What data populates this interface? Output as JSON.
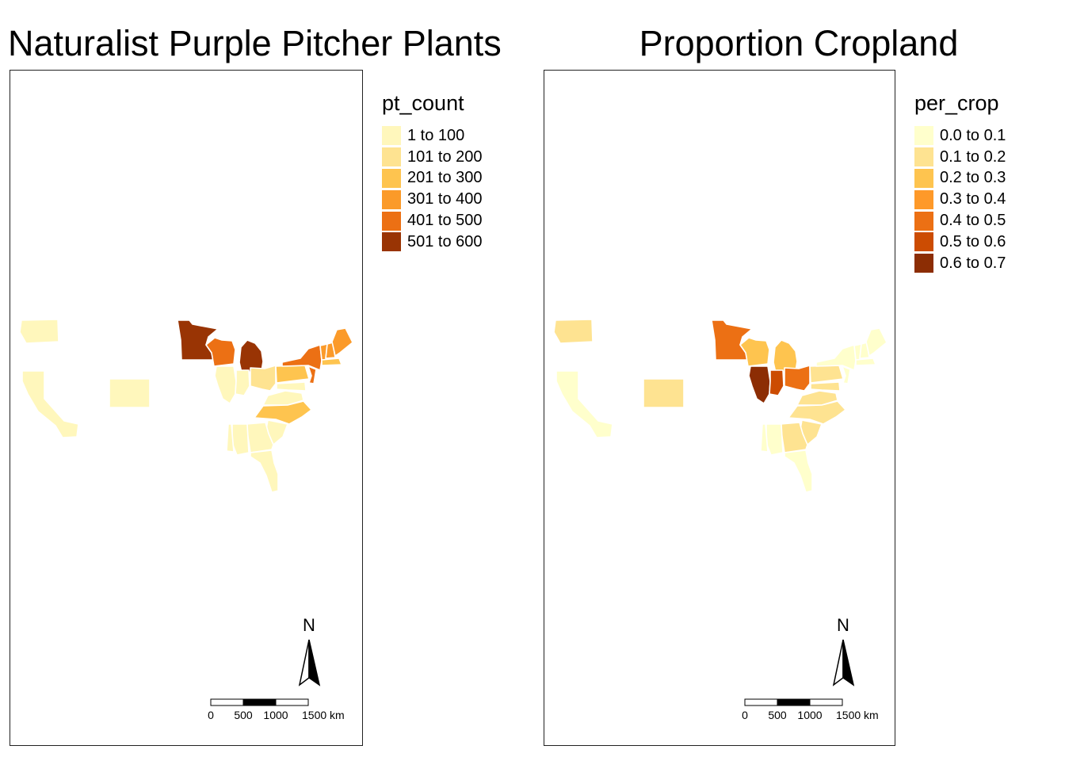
{
  "maps": [
    {
      "title": "Naturalist Purple Pitcher Plants",
      "legend_title": "pt_count",
      "legend": [
        {
          "label": "1 to 100",
          "color": "#FFF7BC"
        },
        {
          "label": "101 to 200",
          "color": "#FEE391"
        },
        {
          "label": "201 to 300",
          "color": "#FEC44F"
        },
        {
          "label": "301 to 400",
          "color": "#FB9A29"
        },
        {
          "label": "401 to 500",
          "color": "#EC7014"
        },
        {
          "label": "501 to 600",
          "color": "#993404"
        }
      ],
      "regions": [
        {
          "name": "Washington",
          "cls": 0
        },
        {
          "name": "California",
          "cls": 0
        },
        {
          "name": "Colorado",
          "cls": 0
        },
        {
          "name": "Minnesota",
          "cls": 5
        },
        {
          "name": "Wisconsin",
          "cls": 4
        },
        {
          "name": "Michigan",
          "cls": 5
        },
        {
          "name": "Illinois",
          "cls": 0
        },
        {
          "name": "Indiana",
          "cls": 0
        },
        {
          "name": "Ohio",
          "cls": 1
        },
        {
          "name": "Pennsylvania",
          "cls": 2
        },
        {
          "name": "New York",
          "cls": 4
        },
        {
          "name": "New Jersey",
          "cls": 4
        },
        {
          "name": "Vermont",
          "cls": 3
        },
        {
          "name": "New Hampshire",
          "cls": 3
        },
        {
          "name": "Maine",
          "cls": 3
        },
        {
          "name": "Massachusetts",
          "cls": 2
        },
        {
          "name": "Maryland",
          "cls": 0
        },
        {
          "name": "Virginia",
          "cls": 0
        },
        {
          "name": "North Carolina",
          "cls": 2
        },
        {
          "name": "South Carolina",
          "cls": 0
        },
        {
          "name": "Georgia",
          "cls": 0
        },
        {
          "name": "Alabama",
          "cls": 0
        },
        {
          "name": "Mississippi",
          "cls": 0
        },
        {
          "name": "Florida",
          "cls": 0
        }
      ]
    },
    {
      "title": "Proportion Cropland",
      "legend_title": "per_crop",
      "legend": [
        {
          "label": "0.0 to 0.1",
          "color": "#FFFFCC"
        },
        {
          "label": "0.1 to 0.2",
          "color": "#FEE391"
        },
        {
          "label": "0.2 to 0.3",
          "color": "#FEC44F"
        },
        {
          "label": "0.3 to 0.4",
          "color": "#FE9929"
        },
        {
          "label": "0.4 to 0.5",
          "color": "#EC7014"
        },
        {
          "label": "0.5 to 0.6",
          "color": "#CC4C02"
        },
        {
          "label": "0.6 to 0.7",
          "color": "#8C2D04"
        }
      ],
      "regions": [
        {
          "name": "Washington",
          "cls": 1
        },
        {
          "name": "California",
          "cls": 0
        },
        {
          "name": "Colorado",
          "cls": 1
        },
        {
          "name": "Minnesota",
          "cls": 4
        },
        {
          "name": "Wisconsin",
          "cls": 2
        },
        {
          "name": "Michigan",
          "cls": 2
        },
        {
          "name": "Illinois",
          "cls": 6
        },
        {
          "name": "Indiana",
          "cls": 5
        },
        {
          "name": "Ohio",
          "cls": 4
        },
        {
          "name": "Pennsylvania",
          "cls": 1
        },
        {
          "name": "New York",
          "cls": 0
        },
        {
          "name": "New Jersey",
          "cls": 0
        },
        {
          "name": "Vermont",
          "cls": 0
        },
        {
          "name": "New Hampshire",
          "cls": 0
        },
        {
          "name": "Maine",
          "cls": 0
        },
        {
          "name": "Massachusetts",
          "cls": 0
        },
        {
          "name": "Maryland",
          "cls": 1
        },
        {
          "name": "Virginia",
          "cls": 1
        },
        {
          "name": "North Carolina",
          "cls": 1
        },
        {
          "name": "South Carolina",
          "cls": 1
        },
        {
          "name": "Georgia",
          "cls": 1
        },
        {
          "name": "Alabama",
          "cls": 0
        },
        {
          "name": "Mississippi",
          "cls": 0
        },
        {
          "name": "Florida",
          "cls": 0
        }
      ]
    }
  ],
  "north_label": "N",
  "scale_ticks": [
    "0",
    "500",
    "1000",
    "1500 km"
  ]
}
